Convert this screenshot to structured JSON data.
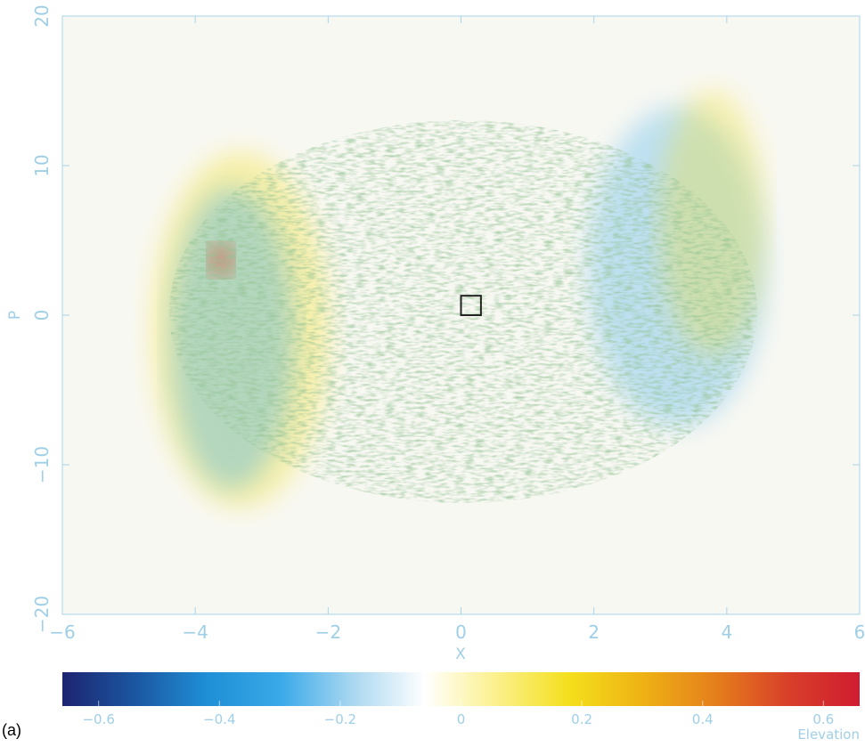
{
  "chart_data": {
    "type": "heatmap",
    "xlabel": "X",
    "ylabel": "P",
    "colorbar_label": "Elevation",
    "panel_label": "(a)",
    "xlim": [
      -6,
      6
    ],
    "ylim": [
      -20,
      20
    ],
    "xticks": [
      {
        "value": -6,
        "label": "−6"
      },
      {
        "value": -4,
        "label": "−4"
      },
      {
        "value": -2,
        "label": "−2"
      },
      0,
      2,
      4,
      6
    ],
    "yticks": [
      {
        "value": -20,
        "label": "−20"
      },
      {
        "value": -10,
        "label": "−10"
      },
      0,
      10,
      20
    ],
    "clim": [
      -0.66,
      0.66
    ],
    "cticks": [
      {
        "value": -0.6,
        "label": "−0.6"
      },
      {
        "value": -0.4,
        "label": "−0.4"
      },
      {
        "value": -0.2,
        "label": "−0.2"
      },
      0,
      0.2,
      0.4,
      0.6
    ],
    "colormap": [
      "#1d2470",
      "#1b56a0",
      "#1f8fd6",
      "#39a9e8",
      "#a9d7f0",
      "#ffffff",
      "#fbf08a",
      "#f4df1c",
      "#eeb214",
      "#e5801c",
      "#d8402a",
      "#d01c30"
    ],
    "background": "#f8f8f3",
    "box": {
      "x": [
        0,
        0.3
      ],
      "y": [
        0,
        1.3
      ]
    }
  }
}
